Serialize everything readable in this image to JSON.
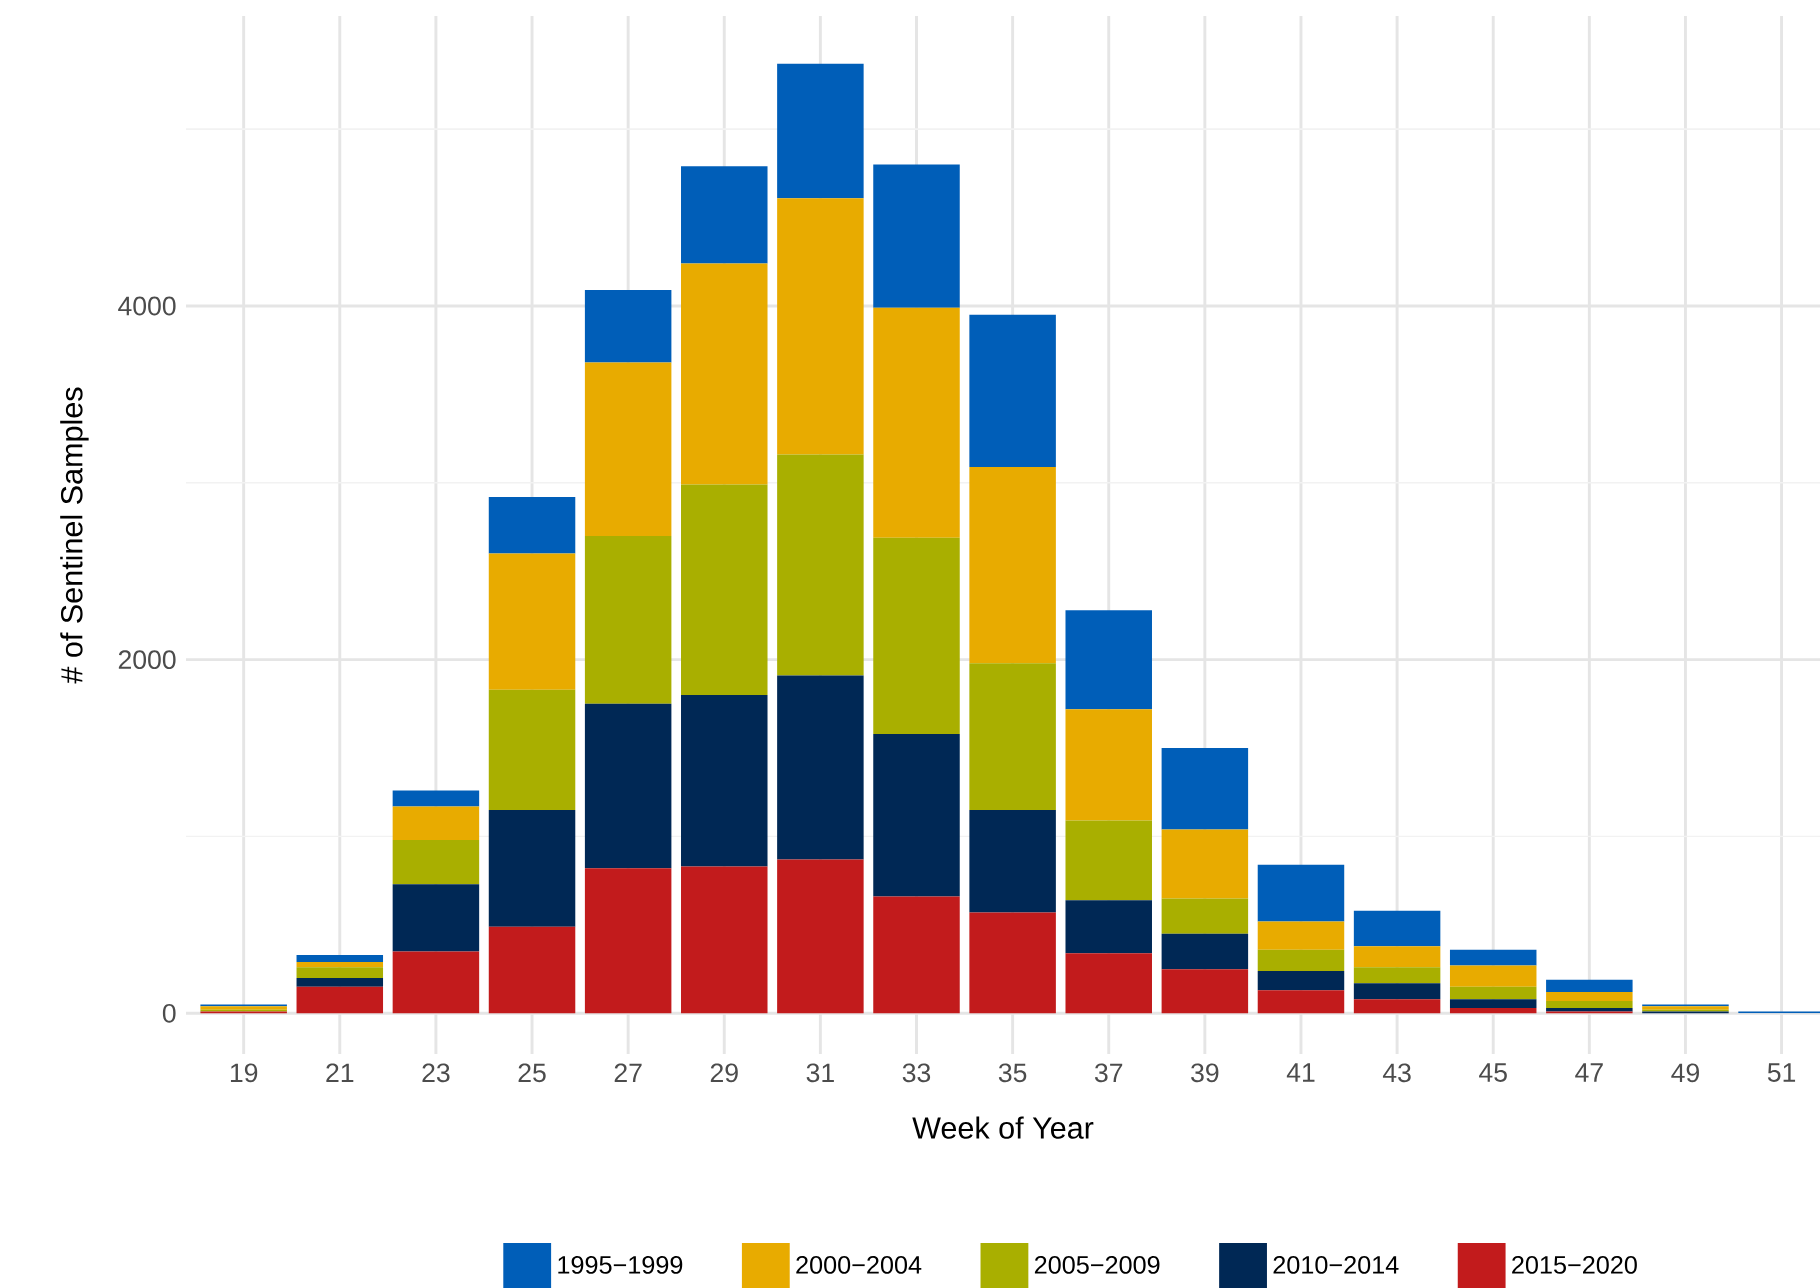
{
  "chart_data": {
    "type": "bar",
    "stacked": true,
    "xlabel": "Week of Year",
    "ylabel": "# of Sentinel Samples",
    "x": [
      19,
      21,
      23,
      25,
      27,
      29,
      31,
      33,
      35,
      37,
      39,
      41,
      43,
      45,
      47,
      49,
      51
    ],
    "series": [
      {
        "name": "2015−2020",
        "color": "#c21b1c",
        "values": [
          10,
          150,
          350,
          490,
          820,
          830,
          870,
          660,
          570,
          340,
          250,
          130,
          80,
          30,
          10,
          0,
          0
        ]
      },
      {
        "name": "2010−2014",
        "color": "#002855",
        "values": [
          0,
          50,
          380,
          660,
          930,
          970,
          1040,
          920,
          580,
          300,
          200,
          110,
          90,
          50,
          20,
          10,
          0
        ]
      },
      {
        "name": "2005−2009",
        "color": "#a9af00",
        "values": [
          10,
          60,
          250,
          680,
          950,
          1190,
          1250,
          1110,
          830,
          450,
          200,
          120,
          90,
          70,
          40,
          10,
          0
        ]
      },
      {
        "name": "2000−2004",
        "color": "#e8ab00",
        "values": [
          20,
          30,
          190,
          770,
          980,
          1250,
          1450,
          1300,
          1110,
          630,
          390,
          160,
          120,
          120,
          50,
          20,
          0
        ]
      },
      {
        "name": "1995−1999",
        "color": "#005eb8",
        "values": [
          10,
          40,
          90,
          320,
          410,
          550,
          760,
          810,
          860,
          560,
          460,
          320,
          200,
          90,
          70,
          10,
          10
        ]
      }
    ],
    "xlim": [
      17.8,
      51.8
    ],
    "ylim": [
      -230,
      5640
    ],
    "xticks": [
      19,
      21,
      23,
      25,
      27,
      29,
      31,
      33,
      35,
      37,
      39,
      41,
      43,
      45,
      47,
      49,
      51
    ],
    "yticks": [
      0,
      {
        "value": 1000,
        "label": null
      },
      2000,
      {
        "value": 3000,
        "label": null
      },
      4000,
      {
        "value": 5000,
        "label": null
      }
    ],
    "grid": true,
    "legend": "bottom"
  }
}
